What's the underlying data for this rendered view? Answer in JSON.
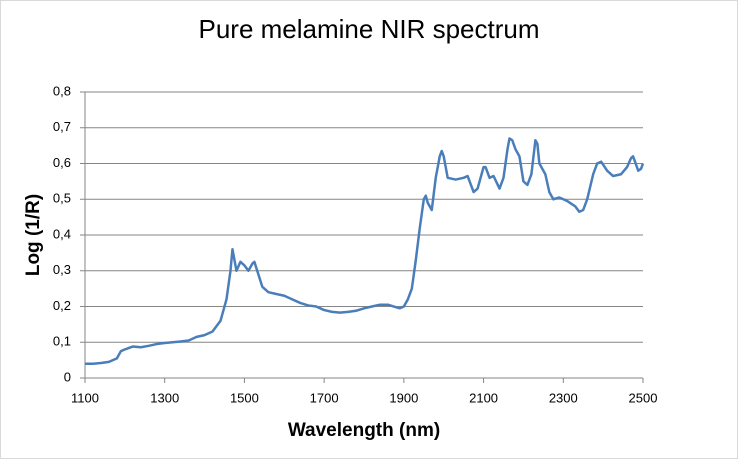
{
  "chart_data": {
    "type": "line",
    "title": "Pure melamine NIR spectrum",
    "x_label": "Wavelength (nm)",
    "y_label": "Log (1/R)",
    "x": [
      1100,
      1120,
      1140,
      1160,
      1180,
      1190,
      1200,
      1220,
      1240,
      1260,
      1280,
      1300,
      1320,
      1340,
      1360,
      1380,
      1400,
      1420,
      1440,
      1455,
      1465,
      1470,
      1480,
      1490,
      1500,
      1510,
      1520,
      1525,
      1535,
      1545,
      1560,
      1580,
      1600,
      1620,
      1640,
      1660,
      1680,
      1700,
      1720,
      1740,
      1760,
      1780,
      1800,
      1820,
      1840,
      1860,
      1880,
      1890,
      1900,
      1910,
      1920,
      1930,
      1940,
      1950,
      1955,
      1960,
      1970,
      1980,
      1990,
      1995,
      2000,
      2010,
      2030,
      2050,
      2060,
      2075,
      2085,
      2100,
      2105,
      2115,
      2125,
      2140,
      2150,
      2160,
      2165,
      2172,
      2180,
      2190,
      2200,
      2210,
      2220,
      2230,
      2235,
      2240,
      2255,
      2265,
      2275,
      2290,
      2310,
      2330,
      2340,
      2350,
      2360,
      2375,
      2385,
      2395,
      2410,
      2425,
      2445,
      2460,
      2470,
      2475,
      2480,
      2488,
      2495,
      2500
    ],
    "values": [
      0.04,
      0.04,
      0.042,
      0.045,
      0.055,
      0.075,
      0.08,
      0.088,
      0.086,
      0.09,
      0.095,
      0.098,
      0.1,
      0.102,
      0.105,
      0.115,
      0.12,
      0.13,
      0.16,
      0.22,
      0.3,
      0.36,
      0.3,
      0.325,
      0.315,
      0.3,
      0.32,
      0.325,
      0.29,
      0.255,
      0.24,
      0.235,
      0.23,
      0.22,
      0.21,
      0.203,
      0.2,
      0.19,
      0.185,
      0.183,
      0.185,
      0.188,
      0.195,
      0.2,
      0.205,
      0.205,
      0.198,
      0.195,
      0.2,
      0.22,
      0.25,
      0.33,
      0.42,
      0.5,
      0.51,
      0.49,
      0.47,
      0.56,
      0.62,
      0.635,
      0.62,
      0.56,
      0.555,
      0.56,
      0.565,
      0.52,
      0.53,
      0.59,
      0.59,
      0.56,
      0.565,
      0.53,
      0.56,
      0.64,
      0.67,
      0.665,
      0.64,
      0.62,
      0.55,
      0.54,
      0.57,
      0.665,
      0.655,
      0.6,
      0.57,
      0.52,
      0.5,
      0.505,
      0.495,
      0.48,
      0.465,
      0.47,
      0.5,
      0.57,
      0.6,
      0.605,
      0.58,
      0.565,
      0.57,
      0.59,
      0.615,
      0.62,
      0.605,
      0.58,
      0.585,
      0.6
    ],
    "color": "#4a7ebb",
    "xlim": [
      1100,
      2500
    ],
    "xticks": [
      1100,
      1300,
      1500,
      1700,
      1900,
      2100,
      2300,
      2500
    ],
    "ylim": [
      0,
      0.8
    ],
    "yticks": [
      0,
      {
        "value": 0.1,
        "label": "0,1"
      },
      {
        "value": 0.2,
        "label": "0,2"
      },
      {
        "value": 0.3,
        "label": "0,3"
      },
      {
        "value": 0.4,
        "label": "0,4"
      },
      {
        "value": 0.5,
        "label": "0,5"
      },
      {
        "value": 0.6,
        "label": "0,6"
      },
      {
        "value": 0.7,
        "label": "0,7"
      },
      {
        "value": 0.8,
        "label": "0,8"
      }
    ],
    "grid": true
  }
}
